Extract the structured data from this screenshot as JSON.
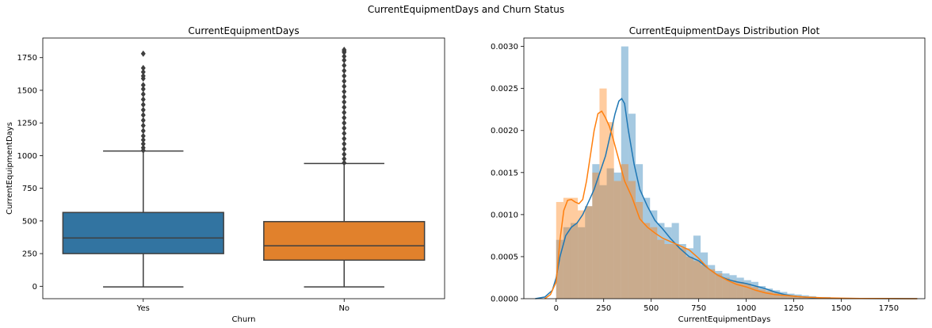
{
  "suptitle": "CurrentEquipmentDays and Churn Status",
  "chart_data": [
    {
      "type": "box",
      "title": "CurrentEquipmentDays",
      "xlabel": "Churn",
      "ylabel": "CurrentEquipmentDays",
      "categories": [
        "Yes",
        "No"
      ],
      "ylim": [
        -95,
        1900
      ],
      "yticks": [
        0,
        250,
        500,
        750,
        1000,
        1250,
        1500,
        1750
      ],
      "boxes": [
        {
          "category": "Yes",
          "color": "#3274a1",
          "min": -5,
          "q1": 250,
          "median": 370,
          "q3": 565,
          "whisker_high": 1035,
          "outliers": [
            1040,
            1060,
            1090,
            1120,
            1150,
            1190,
            1230,
            1270,
            1310,
            1350,
            1390,
            1430,
            1470,
            1510,
            1540,
            1590,
            1610,
            1640,
            1670,
            1780
          ]
        },
        {
          "category": "No",
          "color": "#e1812c",
          "min": -5,
          "q1": 200,
          "median": 310,
          "q3": 495,
          "whisker_high": 940,
          "outliers": [
            945,
            975,
            1010,
            1050,
            1090,
            1130,
            1170,
            1210,
            1250,
            1290,
            1330,
            1370,
            1410,
            1450,
            1490,
            1530,
            1570,
            1610,
            1650,
            1690,
            1730,
            1760,
            1790,
            1800,
            1810
          ]
        }
      ]
    },
    {
      "type": "histogram_kde",
      "title": "CurrentEquipmentDays Distribution Plot",
      "xlabel": "CurrentEquipmentDays",
      "ylabel": "",
      "xlim": [
        -170,
        1940
      ],
      "ylim": [
        0,
        0.0031
      ],
      "xticks": [
        0,
        250,
        500,
        750,
        1000,
        1250,
        1500,
        1750
      ],
      "yticks": [
        "0.0000",
        "0.0005",
        "0.0010",
        "0.0015",
        "0.0020",
        "0.0025",
        "0.0030"
      ],
      "bin_edges": [
        0,
        38,
        76,
        114,
        152,
        190,
        228,
        266,
        304,
        342,
        380,
        418,
        456,
        494,
        532,
        570,
        608,
        646,
        684,
        722,
        760,
        798,
        836,
        874,
        912,
        950,
        988,
        1026,
        1064,
        1102,
        1140,
        1178,
        1216,
        1254,
        1292,
        1330,
        1368,
        1406,
        1444,
        1482,
        1520,
        1558,
        1596,
        1634,
        1672,
        1710,
        1748,
        1786,
        1824,
        1862
      ],
      "series": [
        {
          "color": "#1f77b4",
          "hist": [
            0.0007,
            0.00085,
            0.0009,
            0.00085,
            0.0011,
            0.0016,
            0.00135,
            0.00155,
            0.0015,
            0.003,
            0.0022,
            0.0016,
            0.0012,
            0.00105,
            0.0009,
            0.00085,
            0.0009,
            0.00065,
            0.0006,
            0.00075,
            0.00055,
            0.0004,
            0.00033,
            0.0003,
            0.00028,
            0.00025,
            0.00022,
            0.0002,
            0.00015,
            0.00012,
            0.0001,
            8e-05,
            6e-05,
            5e-05,
            4e-05,
            3e-05,
            2e-05,
            2e-05,
            1e-05,
            1e-05,
            1e-05,
            5e-06,
            5e-06,
            5e-06,
            3e-06,
            3e-06,
            2e-06,
            2e-06,
            1e-06
          ],
          "kde_x": [
            -110,
            -60,
            -20,
            0,
            20,
            50,
            80,
            110,
            140,
            170,
            200,
            230,
            260,
            290,
            310,
            330,
            345,
            360,
            380,
            410,
            440,
            480,
            520,
            560,
            600,
            650,
            700,
            750,
            800,
            850,
            900,
            950,
            1000,
            1050,
            1100,
            1150,
            1200,
            1250,
            1300,
            1350,
            1400,
            1450,
            1500,
            1600,
            1700,
            1800,
            1900
          ],
          "kde_y": [
            0.0,
            2e-05,
            0.0001,
            0.00025,
            0.0005,
            0.00075,
            0.00085,
            0.0009,
            0.001,
            0.00115,
            0.0013,
            0.0015,
            0.0017,
            0.002,
            0.0022,
            0.00235,
            0.00238,
            0.00232,
            0.002,
            0.0016,
            0.0013,
            0.0011,
            0.00093,
            0.00083,
            0.00072,
            0.0006,
            0.0005,
            0.00045,
            0.00036,
            0.00028,
            0.00023,
            0.0002,
            0.00018,
            0.00015,
            0.00012,
            8e-05,
            5e-05,
            3e-05,
            2e-05,
            1.2e-05,
            8e-06,
            5e-06,
            3e-06,
            2e-06,
            1e-06,
            0.0,
            0.0
          ]
        },
        {
          "color": "#ff7f0e",
          "hist": [
            0.00115,
            0.0012,
            0.0012,
            0.00105,
            0.0011,
            0.0015,
            0.0025,
            0.0021,
            0.0014,
            0.0016,
            0.0014,
            0.00115,
            0.0009,
            0.00085,
            0.0007,
            0.00065,
            0.00065,
            0.0006,
            0.0005,
            0.00045,
            0.0004,
            0.00035,
            0.0003,
            0.00025,
            0.00022,
            0.0002,
            0.00018,
            0.00014,
            0.00011,
            9e-05,
            7e-05,
            5e-05,
            4e-05,
            3e-05,
            2e-05,
            1e-05,
            1e-05,
            5e-06,
            5e-06,
            3e-06,
            3e-06,
            2e-06,
            2e-06,
            1e-06,
            1e-06,
            1e-06,
            1e-06,
            1e-06,
            1e-06
          ],
          "kde_x": [
            -60,
            -30,
            0,
            20,
            40,
            60,
            80,
            100,
            120,
            140,
            160,
            180,
            200,
            220,
            240,
            260,
            280,
            300,
            330,
            360,
            400,
            440,
            480,
            520,
            560,
            600,
            650,
            700,
            750,
            800,
            850,
            900,
            950,
            1000,
            1050,
            1100,
            1150,
            1200,
            1300,
            1400,
            1500,
            1600,
            1700,
            1800,
            1900
          ],
          "kde_y": [
            0.0,
            5e-05,
            0.0002,
            0.0007,
            0.00105,
            0.00117,
            0.00118,
            0.00115,
            0.00113,
            0.00118,
            0.0014,
            0.0017,
            0.002,
            0.0022,
            0.00223,
            0.00215,
            0.00205,
            0.0019,
            0.00165,
            0.0014,
            0.0012,
            0.00095,
            0.00085,
            0.00078,
            0.00072,
            0.00068,
            0.00063,
            0.00058,
            0.00048,
            0.00036,
            0.00028,
            0.00022,
            0.00017,
            0.00014,
            0.0001,
            7e-05,
            5e-05,
            4e-05,
            2e-05,
            1e-05,
            6e-06,
            3e-06,
            2e-06,
            1e-06,
            0.0
          ]
        }
      ]
    }
  ]
}
